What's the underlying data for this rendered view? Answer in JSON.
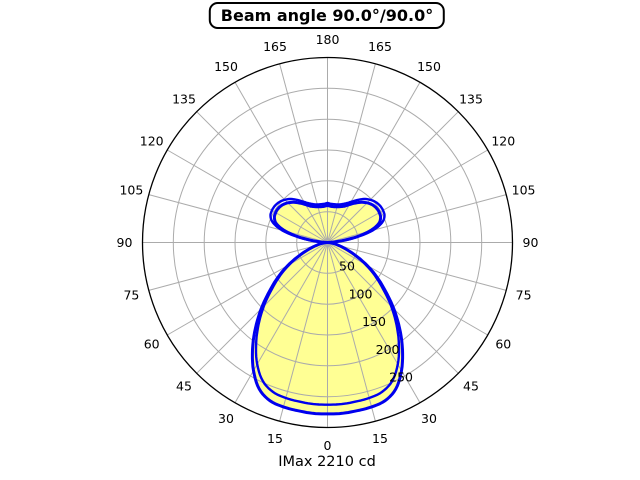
{
  "title": "Beam angle 90.0°/90.0°",
  "footer": "IMax 2210 cd",
  "chart_data": {
    "type": "polar_intensity_curve",
    "title": "Beam angle 90.0°/90.0°",
    "beam_angle_plane1_deg": 90.0,
    "beam_angle_plane2_deg": 90.0,
    "imax_cd": 2210,
    "footer_label": "IMax 2210 cd",
    "angle_ticks_deg": [
      0,
      15,
      30,
      45,
      60,
      75,
      90,
      105,
      120,
      135,
      150,
      165,
      180
    ],
    "angle_labels_mirrored_both_sides": true,
    "radial_ticks": [
      50,
      100,
      150,
      200,
      250
    ],
    "radial_max": 300,
    "grid": true,
    "angles_deg": [
      0,
      5,
      10,
      15,
      20,
      25,
      30,
      35,
      40,
      45,
      50,
      55,
      60,
      65,
      70,
      75,
      80,
      85,
      90,
      95,
      100,
      105,
      110,
      115,
      120,
      125,
      130,
      135,
      140,
      145,
      150,
      155,
      160,
      165,
      170,
      175,
      180
    ],
    "series": [
      {
        "name": "curve1",
        "filled": true,
        "values": [
          278,
          278,
          277,
          276,
          273,
          262,
          240,
          212,
          182,
          152,
          123,
          98,
          74,
          51,
          33,
          20,
          11,
          4,
          0,
          12,
          42,
          70,
          88,
          95,
          97,
          97,
          95,
          91,
          85,
          78,
          71,
          65,
          62,
          60,
          59,
          59,
          60
        ]
      },
      {
        "name": "curve2",
        "filled": false,
        "values": [
          263,
          263,
          262,
          261,
          258,
          248,
          228,
          202,
          174,
          146,
          118,
          94,
          71,
          49,
          31,
          19,
          10,
          3,
          0,
          14,
          46,
          76,
          94,
          102,
          104,
          104,
          102,
          98,
          92,
          84,
          76,
          70,
          66,
          64,
          63,
          63,
          64
        ]
      }
    ],
    "colors": {
      "curve": "#0000ee",
      "fill": "#ffff94",
      "grid": "#ababab",
      "axis": "#000000",
      "background": "#ffffff"
    }
  }
}
